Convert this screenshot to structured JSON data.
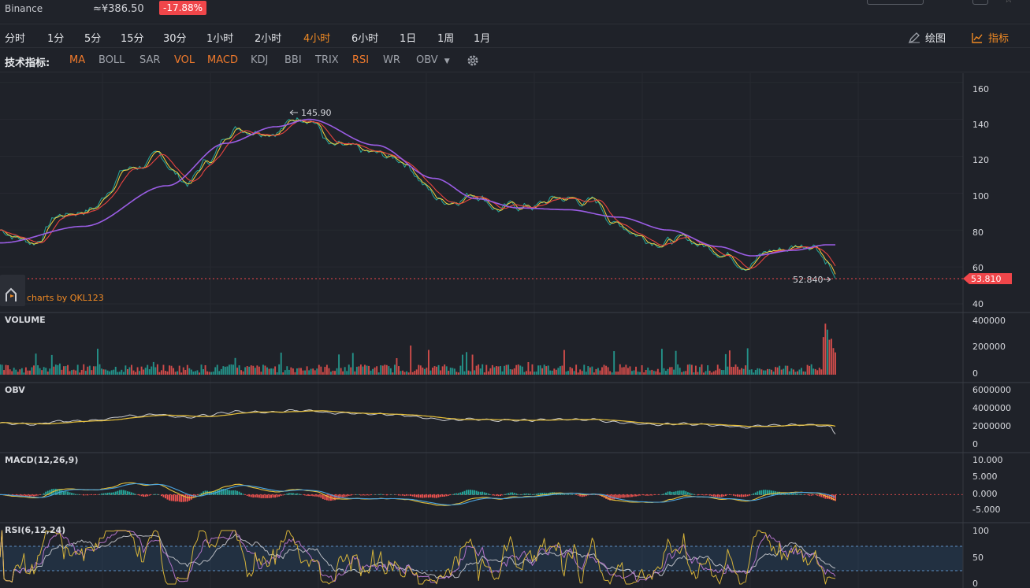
{
  "header": {
    "exchange": "Binance",
    "cny_price": "≈¥386.50",
    "change_pct": "-17.88%"
  },
  "intervals": {
    "items": [
      {
        "label": "分时",
        "key": "fenshi"
      },
      {
        "label": "1分",
        "key": "1m"
      },
      {
        "label": "5分",
        "key": "5m"
      },
      {
        "label": "15分",
        "key": "15m"
      },
      {
        "label": "30分",
        "key": "30m"
      },
      {
        "label": "1小时",
        "key": "1h"
      },
      {
        "label": "2小时",
        "key": "2h"
      },
      {
        "label": "4小时",
        "key": "4h",
        "active": true
      },
      {
        "label": "6小时",
        "key": "6h"
      },
      {
        "label": "1日",
        "key": "1d"
      },
      {
        "label": "1周",
        "key": "1w"
      },
      {
        "label": "1月",
        "key": "1M"
      }
    ],
    "draw_label": "绘图",
    "indicator_label": "指标"
  },
  "indicators": {
    "title": "技术指标:",
    "items": [
      {
        "label": "MA",
        "active": true
      },
      {
        "label": "BOLL",
        "active": false
      },
      {
        "label": "SAR",
        "active": false
      },
      {
        "label": "VOL",
        "active": true
      },
      {
        "label": "MACD",
        "active": true
      },
      {
        "label": "KDJ",
        "active": false
      },
      {
        "label": "BBI",
        "active": false
      },
      {
        "label": "TRIX",
        "active": false
      },
      {
        "label": "RSI",
        "active": true
      },
      {
        "label": "WR",
        "active": false
      },
      {
        "label": "OBV",
        "active": false,
        "dropdown": true
      }
    ]
  },
  "chart": {
    "watermark": "charts by QKL123",
    "price_high": "145.90",
    "price_low": "52.840",
    "last_price": "53.810",
    "colors": {
      "up": "#26a69a",
      "down": "#ef5350",
      "accent": "#f08a24",
      "ma_short": "#f4d03f",
      "ma_mid": "#26a69a",
      "ma_red": "#e8433f",
      "ma_long": "#9b5de5",
      "obv_line": "#c9cbd0",
      "obv_ma": "#e8c13a",
      "macd_dif": "#e8c13a",
      "macd_dea": "#4aa3df",
      "rsi6": "#e8c13a",
      "rsi12": "#c07ad6",
      "rsi24": "#c9cbd0"
    },
    "panels": {
      "price": {
        "ticks": [
          "160",
          "140",
          "120",
          "100",
          "80",
          "60",
          "40"
        ]
      },
      "volume": {
        "label": "VOLUME",
        "ticks": [
          "400000",
          "200000",
          "0"
        ]
      },
      "obv": {
        "label": "OBV",
        "ticks": [
          "6000000",
          "4000000",
          "2000000",
          "0"
        ]
      },
      "macd": {
        "label": "MACD(12,26,9)",
        "ticks": [
          "10.000",
          "5.000",
          "0.000",
          "-5.000"
        ]
      },
      "rsi": {
        "label": "RSI(6,12,24)",
        "ticks": [
          "100",
          "50",
          "0"
        ]
      }
    }
  },
  "chart_data": {
    "type": "line",
    "title": "",
    "price_anchors": [
      [
        0,
        80
      ],
      [
        0.04,
        74
      ],
      [
        0.07,
        88
      ],
      [
        0.11,
        92
      ],
      [
        0.15,
        113
      ],
      [
        0.19,
        118
      ],
      [
        0.225,
        106
      ],
      [
        0.25,
        118
      ],
      [
        0.28,
        136
      ],
      [
        0.33,
        136
      ],
      [
        0.37,
        143
      ],
      [
        0.4,
        124
      ],
      [
        0.44,
        120
      ],
      [
        0.48,
        118
      ],
      [
        0.53,
        96
      ],
      [
        0.57,
        101
      ],
      [
        0.6,
        92
      ],
      [
        0.64,
        93
      ],
      [
        0.67,
        97
      ],
      [
        0.71,
        95
      ],
      [
        0.74,
        83
      ],
      [
        0.78,
        76
      ],
      [
        0.82,
        74
      ],
      [
        0.86,
        70
      ],
      [
        0.89,
        64
      ],
      [
        0.93,
        69
      ],
      [
        0.96,
        72
      ],
      [
        0.975,
        74
      ],
      [
        0.99,
        65
      ],
      [
        1.0,
        53.8
      ]
    ],
    "ma_long_anchors": [
      [
        0,
        73
      ],
      [
        0.1,
        82
      ],
      [
        0.2,
        104
      ],
      [
        0.27,
        127
      ],
      [
        0.33,
        136
      ],
      [
        0.37,
        140
      ],
      [
        0.45,
        126
      ],
      [
        0.52,
        108
      ],
      [
        0.57,
        97
      ],
      [
        0.62,
        92
      ],
      [
        0.68,
        91
      ],
      [
        0.74,
        87
      ],
      [
        0.8,
        80
      ],
      [
        0.86,
        71
      ],
      [
        0.9,
        66
      ],
      [
        0.95,
        69
      ],
      [
        0.99,
        72
      ],
      [
        1.0,
        72
      ]
    ],
    "price_range": [
      37,
      165
    ],
    "volume_range": [
      0,
      420000
    ],
    "obv_range": [
      -500000,
      6500000
    ],
    "macd_range": [
      -8,
      12
    ],
    "rsi_range": [
      0,
      100
    ],
    "rsi_band": [
      30,
      70
    ]
  }
}
